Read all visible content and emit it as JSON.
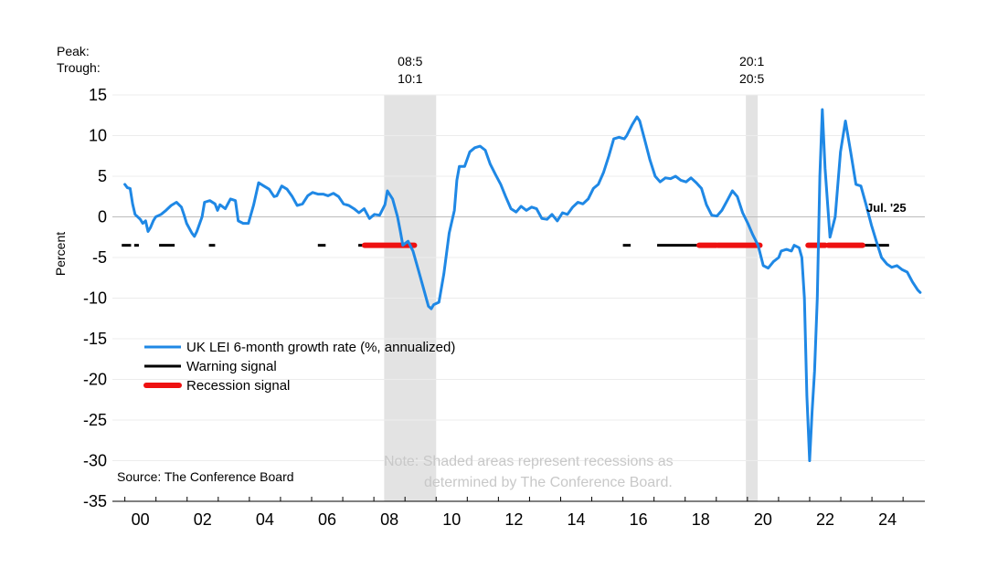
{
  "chart_data": {
    "type": "line",
    "title": "",
    "ylabel": "Percent",
    "xlabel": "",
    "ylim": [
      -35,
      15
    ],
    "xlim": [
      1999.6,
      2025.7
    ],
    "yticks": [
      15,
      10,
      5,
      0,
      -5,
      -10,
      -15,
      -20,
      -25,
      -30,
      -35
    ],
    "xticks": [
      {
        "label": "00",
        "x": 2000
      },
      {
        "label": "02",
        "x": 2002
      },
      {
        "label": "04",
        "x": 2004
      },
      {
        "label": "06",
        "x": 2006
      },
      {
        "label": "08",
        "x": 2008
      },
      {
        "label": "10",
        "x": 2010
      },
      {
        "label": "12",
        "x": 2012
      },
      {
        "label": "14",
        "x": 2014
      },
      {
        "label": "16",
        "x": 2016
      },
      {
        "label": "18",
        "x": 2018
      },
      {
        "label": "20",
        "x": 2020
      },
      {
        "label": "22",
        "x": 2022
      },
      {
        "label": "24",
        "x": 2024
      }
    ],
    "peak_trough_label": [
      "Peak:",
      "Trough:"
    ],
    "recessions": [
      {
        "start": 2008.33,
        "end": 2010.0,
        "peak_label": "08:5",
        "trough_label": "10:1"
      },
      {
        "start": 2019.95,
        "end": 2020.33,
        "peak_label": "20:1",
        "trough_label": "20:5"
      }
    ],
    "series": [
      {
        "name": "UK LEI 6-month growth rate (%, annualized)",
        "color": "#1f88e5",
        "points": [
          [
            2000.0,
            4.0
          ],
          [
            2000.08,
            3.6
          ],
          [
            2000.17,
            3.5
          ],
          [
            2000.25,
            1.6
          ],
          [
            2000.33,
            0.3
          ],
          [
            2000.5,
            -0.3
          ],
          [
            2000.58,
            -0.8
          ],
          [
            2000.67,
            -0.5
          ],
          [
            2000.75,
            -1.8
          ],
          [
            2000.83,
            -1.3
          ],
          [
            2000.92,
            -0.5
          ],
          [
            2001.0,
            0.0
          ],
          [
            2001.17,
            0.3
          ],
          [
            2001.33,
            0.8
          ],
          [
            2001.5,
            1.4
          ],
          [
            2001.67,
            1.8
          ],
          [
            2001.83,
            1.2
          ],
          [
            2001.92,
            0.2
          ],
          [
            2002.0,
            -0.8
          ],
          [
            2002.17,
            -2.0
          ],
          [
            2002.25,
            -2.4
          ],
          [
            2002.33,
            -1.8
          ],
          [
            2002.5,
            0.0
          ],
          [
            2002.58,
            1.8
          ],
          [
            2002.75,
            2.0
          ],
          [
            2002.92,
            1.6
          ],
          [
            2003.0,
            0.8
          ],
          [
            2003.08,
            1.5
          ],
          [
            2003.25,
            1.0
          ],
          [
            2003.42,
            2.2
          ],
          [
            2003.58,
            2.0
          ],
          [
            2003.67,
            -0.5
          ],
          [
            2003.83,
            -0.8
          ],
          [
            2004.0,
            -0.8
          ],
          [
            2004.17,
            1.5
          ],
          [
            2004.33,
            4.2
          ],
          [
            2004.5,
            3.8
          ],
          [
            2004.67,
            3.4
          ],
          [
            2004.83,
            2.5
          ],
          [
            2004.92,
            2.6
          ],
          [
            2005.08,
            3.8
          ],
          [
            2005.25,
            3.4
          ],
          [
            2005.42,
            2.5
          ],
          [
            2005.58,
            1.4
          ],
          [
            2005.75,
            1.6
          ],
          [
            2005.92,
            2.6
          ],
          [
            2006.08,
            3.0
          ],
          [
            2006.25,
            2.8
          ],
          [
            2006.42,
            2.8
          ],
          [
            2006.58,
            2.6
          ],
          [
            2006.75,
            2.9
          ],
          [
            2006.92,
            2.5
          ],
          [
            2007.08,
            1.6
          ],
          [
            2007.25,
            1.4
          ],
          [
            2007.42,
            1.0
          ],
          [
            2007.58,
            0.5
          ],
          [
            2007.75,
            1.0
          ],
          [
            2007.92,
            -0.2
          ],
          [
            2008.08,
            0.3
          ],
          [
            2008.25,
            0.2
          ],
          [
            2008.42,
            1.5
          ],
          [
            2008.5,
            3.2
          ],
          [
            2008.67,
            2.2
          ],
          [
            2008.83,
            0.0
          ],
          [
            2008.92,
            -1.8
          ],
          [
            2009.0,
            -3.5
          ],
          [
            2009.17,
            -3.0
          ],
          [
            2009.33,
            -4.2
          ],
          [
            2009.5,
            -6.5
          ],
          [
            2009.67,
            -8.8
          ],
          [
            2009.83,
            -11.0
          ],
          [
            2009.92,
            -11.3
          ],
          [
            2010.0,
            -10.8
          ],
          [
            2010.17,
            -10.5
          ],
          [
            2010.33,
            -7.0
          ],
          [
            2010.5,
            -2.0
          ],
          [
            2010.67,
            0.8
          ],
          [
            2010.75,
            4.5
          ],
          [
            2010.83,
            6.2
          ],
          [
            2011.0,
            6.2
          ],
          [
            2011.17,
            8.0
          ],
          [
            2011.33,
            8.5
          ],
          [
            2011.5,
            8.7
          ],
          [
            2011.67,
            8.2
          ],
          [
            2011.83,
            6.5
          ],
          [
            2012.0,
            5.2
          ],
          [
            2012.17,
            4.0
          ],
          [
            2012.33,
            2.5
          ],
          [
            2012.5,
            1.0
          ],
          [
            2012.67,
            0.6
          ],
          [
            2012.83,
            1.3
          ],
          [
            2013.0,
            0.8
          ],
          [
            2013.17,
            1.2
          ],
          [
            2013.33,
            1.0
          ],
          [
            2013.5,
            -0.2
          ],
          [
            2013.67,
            -0.3
          ],
          [
            2013.83,
            0.3
          ],
          [
            2014.0,
            -0.5
          ],
          [
            2014.17,
            0.5
          ],
          [
            2014.33,
            0.3
          ],
          [
            2014.5,
            1.2
          ],
          [
            2014.67,
            1.8
          ],
          [
            2014.83,
            1.6
          ],
          [
            2015.0,
            2.2
          ],
          [
            2015.17,
            3.5
          ],
          [
            2015.33,
            4.0
          ],
          [
            2015.5,
            5.5
          ],
          [
            2015.67,
            7.5
          ],
          [
            2015.83,
            9.6
          ],
          [
            2016.0,
            9.8
          ],
          [
            2016.17,
            9.6
          ],
          [
            2016.25,
            10.0
          ],
          [
            2016.42,
            11.3
          ],
          [
            2016.58,
            12.3
          ],
          [
            2016.67,
            11.8
          ],
          [
            2016.83,
            9.5
          ],
          [
            2017.0,
            7.0
          ],
          [
            2017.17,
            5.0
          ],
          [
            2017.33,
            4.3
          ],
          [
            2017.5,
            4.8
          ],
          [
            2017.67,
            4.7
          ],
          [
            2017.83,
            5.0
          ],
          [
            2018.0,
            4.5
          ],
          [
            2018.17,
            4.3
          ],
          [
            2018.33,
            4.8
          ],
          [
            2018.5,
            4.2
          ],
          [
            2018.67,
            3.5
          ],
          [
            2018.83,
            1.5
          ],
          [
            2019.0,
            0.2
          ],
          [
            2019.17,
            0.1
          ],
          [
            2019.33,
            0.8
          ],
          [
            2019.5,
            2.0
          ],
          [
            2019.67,
            3.2
          ],
          [
            2019.83,
            2.5
          ],
          [
            2020.0,
            0.5
          ],
          [
            2020.17,
            -0.8
          ],
          [
            2020.33,
            -2.2
          ],
          [
            2020.5,
            -3.5
          ],
          [
            2020.67,
            -6.0
          ],
          [
            2020.83,
            -6.3
          ],
          [
            2021.0,
            -5.5
          ],
          [
            2021.17,
            -5.0
          ],
          [
            2021.25,
            -4.2
          ],
          [
            2021.42,
            -4.0
          ],
          [
            2021.58,
            -4.2
          ],
          [
            2021.67,
            -3.5
          ],
          [
            2021.83,
            -3.8
          ],
          [
            2021.92,
            -5.0
          ],
          [
            2022.0,
            -10.0
          ],
          [
            2022.08,
            -22.0
          ],
          [
            2022.17,
            -30.0
          ],
          [
            2022.25,
            -24.0
          ],
          [
            2022.33,
            -19.0
          ],
          [
            2022.42,
            -10.0
          ],
          [
            2022.5,
            5.0
          ],
          [
            2022.58,
            13.2
          ],
          [
            2022.67,
            6.0
          ],
          [
            2022.83,
            -2.5
          ],
          [
            2023.0,
            0.0
          ],
          [
            2023.17,
            8.0
          ],
          [
            2023.33,
            11.8
          ],
          [
            2023.5,
            8.0
          ],
          [
            2023.67,
            4.0
          ],
          [
            2023.83,
            3.8
          ],
          [
            2024.0,
            1.5
          ],
          [
            2024.17,
            -1.0
          ],
          [
            2024.33,
            -3.0
          ],
          [
            2024.5,
            -5.0
          ],
          [
            2024.67,
            -5.8
          ],
          [
            2024.83,
            -6.2
          ],
          [
            2025.0,
            -6.0
          ],
          [
            2025.17,
            -6.5
          ],
          [
            2025.33,
            -6.8
          ],
          [
            2025.5,
            -8.0
          ],
          [
            2025.67,
            -9.0
          ],
          [
            2025.75,
            -9.3
          ]
        ],
        "points_note_units": "year"
      },
      {
        "name": "Warning signal",
        "color": "#000000",
        "level": -3.5,
        "segments": [
          [
            1999.9,
            2000.2
          ],
          [
            2000.3,
            2000.45
          ],
          [
            2001.1,
            2001.6
          ],
          [
            2002.7,
            2002.9
          ],
          [
            2006.2,
            2006.45
          ],
          [
            2007.5,
            2007.7
          ],
          [
            2016.0,
            2016.25
          ],
          [
            2017.1,
            2018.45
          ],
          [
            2019.0,
            2020.0
          ],
          [
            2022.0,
            2024.55
          ]
        ]
      },
      {
        "name": "Recession signal",
        "color": "#ee1111",
        "level": -3.5,
        "segments": [
          [
            2007.7,
            2009.3
          ],
          [
            2018.45,
            2019.0
          ],
          [
            2019.05,
            2020.4
          ],
          [
            2021.95,
            2022.5
          ],
          [
            2022.6,
            2023.7
          ]
        ]
      }
    ],
    "last_label": "Jul. '25",
    "source": "Source: The Conference Board",
    "note": [
      "Note: Shaded areas represent recessions as",
      "determined by The Conference Board."
    ]
  }
}
